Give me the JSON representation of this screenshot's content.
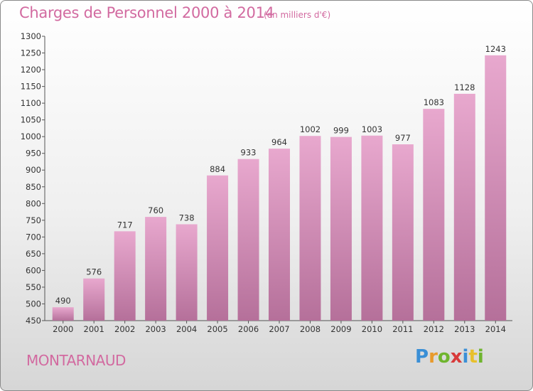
{
  "title": "Charges de Personnel 2000 à 2014",
  "subtitle": "(en milliers d'€)",
  "commune": "MONTARNAUD",
  "logo": {
    "letters": [
      {
        "char": "P",
        "color": "#3a8fd6"
      },
      {
        "char": "r",
        "color": "#e89a2c"
      },
      {
        "char": "o",
        "color": "#6fb52e"
      },
      {
        "char": "x",
        "color": "#d83a3a"
      },
      {
        "char": "i",
        "color": "#3a8fd6"
      },
      {
        "char": "t",
        "color": "#e8c02c"
      },
      {
        "char": "i",
        "color": "#6fb52e"
      }
    ]
  },
  "colors": {
    "bar_top": "#e8a8ce",
    "bar_bottom": "#b5709a",
    "accent": "#d26aa0"
  },
  "chart_data": {
    "type": "bar",
    "title": "Charges de Personnel 2000 à 2014",
    "subtitle": "(en milliers d'€)",
    "categories": [
      "2000",
      "2001",
      "2002",
      "2003",
      "2004",
      "2005",
      "2006",
      "2007",
      "2008",
      "2009",
      "2010",
      "2011",
      "2012",
      "2013",
      "2014"
    ],
    "values": [
      490,
      576,
      717,
      760,
      738,
      884,
      933,
      964,
      1002,
      999,
      1003,
      977,
      1083,
      1128,
      1243
    ],
    "ylim": [
      450,
      1300
    ],
    "yticks": [
      450,
      500,
      550,
      600,
      650,
      700,
      750,
      800,
      850,
      900,
      950,
      1000,
      1050,
      1100,
      1150,
      1200,
      1250,
      1300
    ],
    "xlabel": "",
    "ylabel": "",
    "grid": false,
    "data_labels": true
  }
}
